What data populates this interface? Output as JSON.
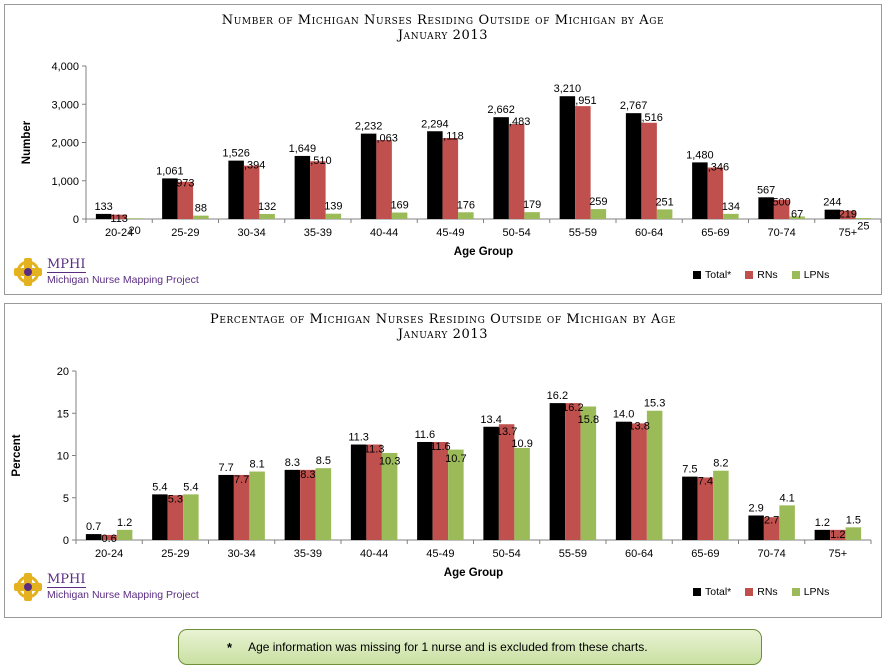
{
  "colors": {
    "total": "#000000",
    "rns": "#c0504d",
    "lpns": "#9bbb59"
  },
  "logo": {
    "word": "MPHI",
    "subtitle": "Michigan Nurse Mapping Project"
  },
  "legend": [
    "Total*",
    "RNs",
    "LPNs"
  ],
  "footnote": {
    "symbol": "*",
    "text": "Age information was missing for 1 nurse and is excluded from these charts."
  },
  "chart_data": [
    {
      "type": "bar",
      "title": "Number of Michigan Nurses Residing Outside of Michigan by Age",
      "subtitle": "January 2013",
      "xlabel": "Age Group",
      "ylabel": "Number",
      "ylim": [
        0,
        4000
      ],
      "yticks": [
        "0",
        "1,000",
        "2,000",
        "3,000",
        "4,000"
      ],
      "ytick_values": [
        0,
        1000,
        2000,
        3000,
        4000
      ],
      "categories": [
        "20-24",
        "25-29",
        "30-34",
        "35-39",
        "40-44",
        "45-49",
        "50-54",
        "55-59",
        "60-64",
        "65-69",
        "70-74",
        "75+"
      ],
      "series": [
        {
          "name": "Total*",
          "values": [
            133,
            1061,
            1526,
            1649,
            2232,
            2294,
            2662,
            3210,
            2767,
            1480,
            567,
            244
          ],
          "labels": [
            "133",
            "1,061",
            "1,526",
            "1,649",
            "2,232",
            "2,294",
            "2,662",
            "3,210",
            "2,767",
            "1,480",
            "567",
            "244"
          ]
        },
        {
          "name": "RNs",
          "values": [
            113,
            973,
            1394,
            1510,
            2063,
            2118,
            2483,
            2951,
            2516,
            1346,
            500,
            219
          ],
          "labels": [
            "113",
            "973",
            "1,394",
            "1,510",
            "2,063",
            "2,118",
            "2,483",
            "2,951",
            "2,516",
            "1,346",
            "500",
            "219"
          ]
        },
        {
          "name": "LPNs",
          "values": [
            20,
            88,
            132,
            139,
            169,
            176,
            179,
            259,
            251,
            134,
            67,
            25
          ],
          "labels": [
            "20",
            "88",
            "132",
            "139",
            "169",
            "176",
            "179",
            "259",
            "251",
            "134",
            "67",
            "25"
          ]
        }
      ],
      "legend": "bottom-right",
      "grid": false
    },
    {
      "type": "bar",
      "title": "Percentage of Michigan Nurses Residing Outside of Michigan by Age",
      "subtitle": "January 2013",
      "xlabel": "Age Group",
      "ylabel": "Percent",
      "ylim": [
        0,
        20
      ],
      "yticks": [
        "0",
        "5",
        "10",
        "15",
        "20"
      ],
      "ytick_values": [
        0,
        5,
        10,
        15,
        20
      ],
      "categories": [
        "20-24",
        "25-29",
        "30-34",
        "35-39",
        "40-44",
        "45-49",
        "50-54",
        "55-59",
        "60-64",
        "65-69",
        "70-74",
        "75+"
      ],
      "series": [
        {
          "name": "Total*",
          "values": [
            0.7,
            5.4,
            7.7,
            8.3,
            11.3,
            11.6,
            13.4,
            16.2,
            14.0,
            7.5,
            2.9,
            1.2
          ],
          "labels": [
            "0.7",
            "5.4",
            "7.7",
            "8.3",
            "11.3",
            "11.6",
            "13.4",
            "16.2",
            "14.0",
            "7.5",
            "2.9",
            "1.2"
          ]
        },
        {
          "name": "RNs",
          "values": [
            0.6,
            5.3,
            7.7,
            8.3,
            11.3,
            11.6,
            13.7,
            16.2,
            13.8,
            7.4,
            2.7,
            1.2
          ],
          "labels": [
            "0.6",
            "5.3",
            "7.7",
            "8.3",
            "11.3",
            "11.6",
            "13.7",
            "16.2",
            "13.8",
            "7.4",
            "2.7",
            "1.2"
          ]
        },
        {
          "name": "LPNs",
          "values": [
            1.2,
            5.4,
            8.1,
            8.5,
            10.3,
            10.7,
            10.9,
            15.8,
            15.3,
            8.2,
            4.1,
            1.5
          ],
          "labels": [
            "1.2",
            "5.4",
            "8.1",
            "8.5",
            "10.3",
            "10.7",
            "10.9",
            "15.8",
            "15.3",
            "8.2",
            "4.1",
            "1.5"
          ]
        }
      ],
      "legend": "bottom-right",
      "grid": false
    }
  ]
}
